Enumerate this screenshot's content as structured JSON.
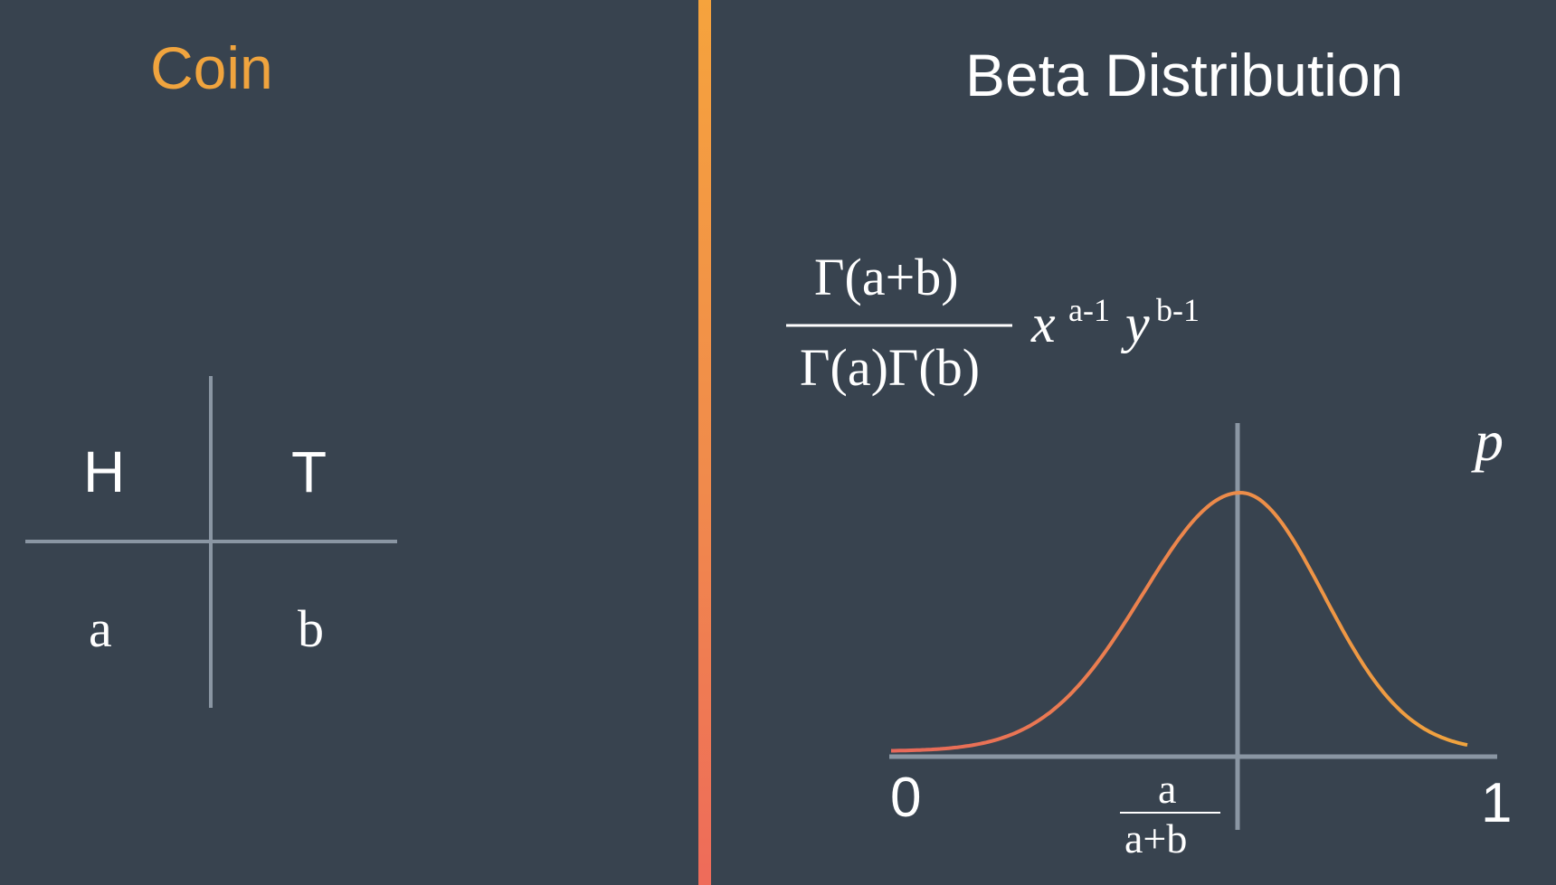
{
  "left_panel": {
    "title": "Coin",
    "table": {
      "headers": [
        "H",
        "T"
      ],
      "values": [
        "a",
        "b"
      ]
    }
  },
  "right_panel": {
    "title": "Beta Distribution",
    "formula": {
      "numerator": "Γ(a+b)",
      "denominator": "Γ(a)Γ(b)",
      "x_base": "x",
      "x_exp": "a-1",
      "y_base": "y",
      "y_exp": "b-1"
    },
    "graph": {
      "axis_variable": "p",
      "x_min_label": "0",
      "x_max_label": "1",
      "mean_label_num": "a",
      "mean_label_den": "a+b"
    }
  },
  "colors": {
    "background": "#38434f",
    "accent_orange": "#f0a43e",
    "curve_start": "#e8685a",
    "curve_end": "#f0a43e",
    "axis_gray": "#8a96a3"
  }
}
